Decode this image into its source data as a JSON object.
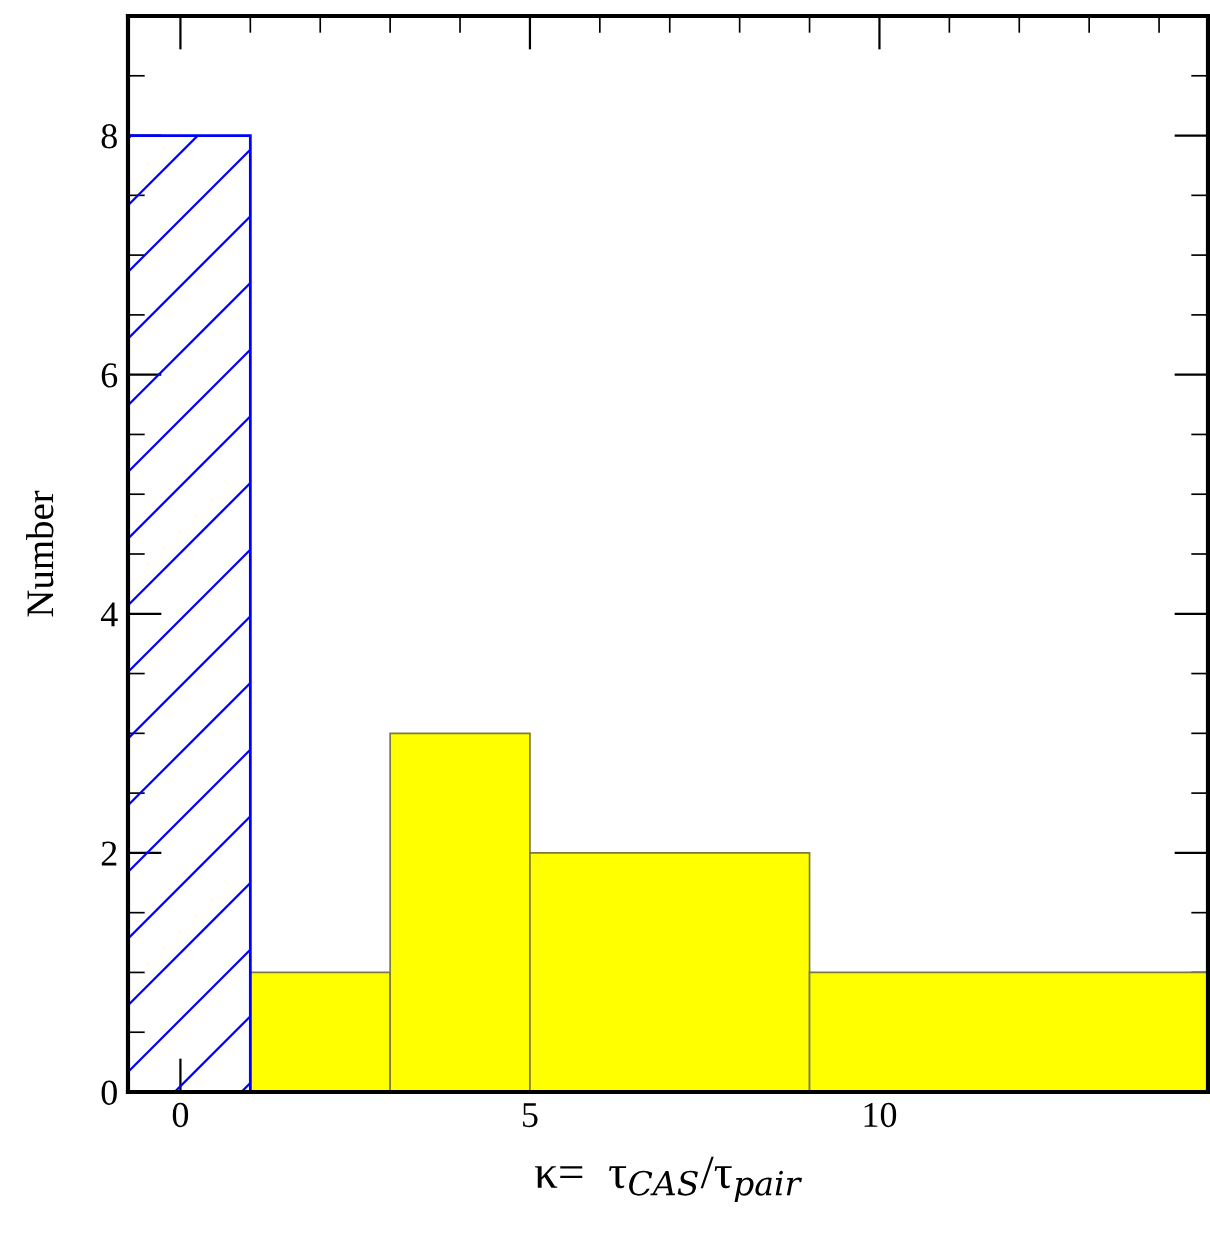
{
  "chart_data": {
    "type": "histogram",
    "xlabel": "κ=  τ$_{CAS}$/τ$_{pair}$",
    "ylabel": "Number",
    "bins": [
      -0.75,
      1,
      3,
      5,
      9,
      14.7
    ],
    "series": [
      {
        "color": "#0000ff",
        "values": [
          8,
          null,
          null,
          null,
          null
        ]
      },
      {
        "color": "#ffff00",
        "values": [
          null,
          1,
          3,
          2,
          1
        ]
      }
    ],
    "xlim": [
      -0.75,
      14.7
    ],
    "ylim": [
      0,
      9
    ],
    "xticks": [
      0,
      {
        "value": 1,
        "label": null
      },
      {
        "value": 2,
        "label": null
      },
      {
        "value": 3,
        "label": null
      },
      {
        "value": 4,
        "label": null
      },
      5,
      {
        "value": 6,
        "label": null
      },
      {
        "value": 7,
        "label": null
      },
      {
        "value": 8,
        "label": null
      },
      {
        "value": 9,
        "label": null
      },
      10,
      {
        "value": 11,
        "label": null
      },
      {
        "value": 12,
        "label": null
      },
      {
        "value": 13,
        "label": null
      },
      {
        "value": 14,
        "label": null
      }
    ],
    "yticks": [
      0,
      {
        "value": 0.5,
        "label": null
      },
      {
        "value": 1,
        "label": null
      },
      {
        "value": 1.5,
        "label": null
      },
      2,
      {
        "value": 2.5,
        "label": null
      },
      {
        "value": 3,
        "label": null
      },
      {
        "value": 3.5,
        "label": null
      },
      4,
      {
        "value": 4.5,
        "label": null
      },
      {
        "value": 5,
        "label": null
      },
      {
        "value": 5.5,
        "label": null
      },
      6,
      {
        "value": 6.5,
        "label": null
      },
      {
        "value": 7,
        "label": null
      },
      {
        "value": 7.5,
        "label": null
      },
      8,
      {
        "value": 8.5,
        "label": null
      }
    ],
    "grid": false,
    "legend": false
  }
}
